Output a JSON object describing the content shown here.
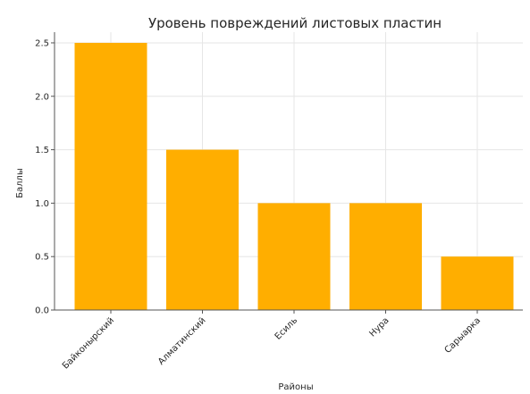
{
  "chart_data": {
    "type": "bar",
    "title": "Уровень повреждений листовых пластин",
    "xlabel": "Районы",
    "ylabel": "Баллы",
    "categories": [
      "Байконырский",
      "Алматинский",
      "Есиль",
      "Нура",
      "Сарыарка"
    ],
    "values": [
      2.5,
      1.5,
      1.0,
      1.0,
      0.5
    ],
    "ylim": [
      0,
      2.6
    ],
    "yticks": [
      0.0,
      0.5,
      1.0,
      1.5,
      2.0,
      2.5
    ],
    "ytick_labels": [
      "0.0",
      "0.5",
      "1.0",
      "1.5",
      "2.0",
      "2.5"
    ],
    "grid": true,
    "bar_color": "#ffae00"
  }
}
